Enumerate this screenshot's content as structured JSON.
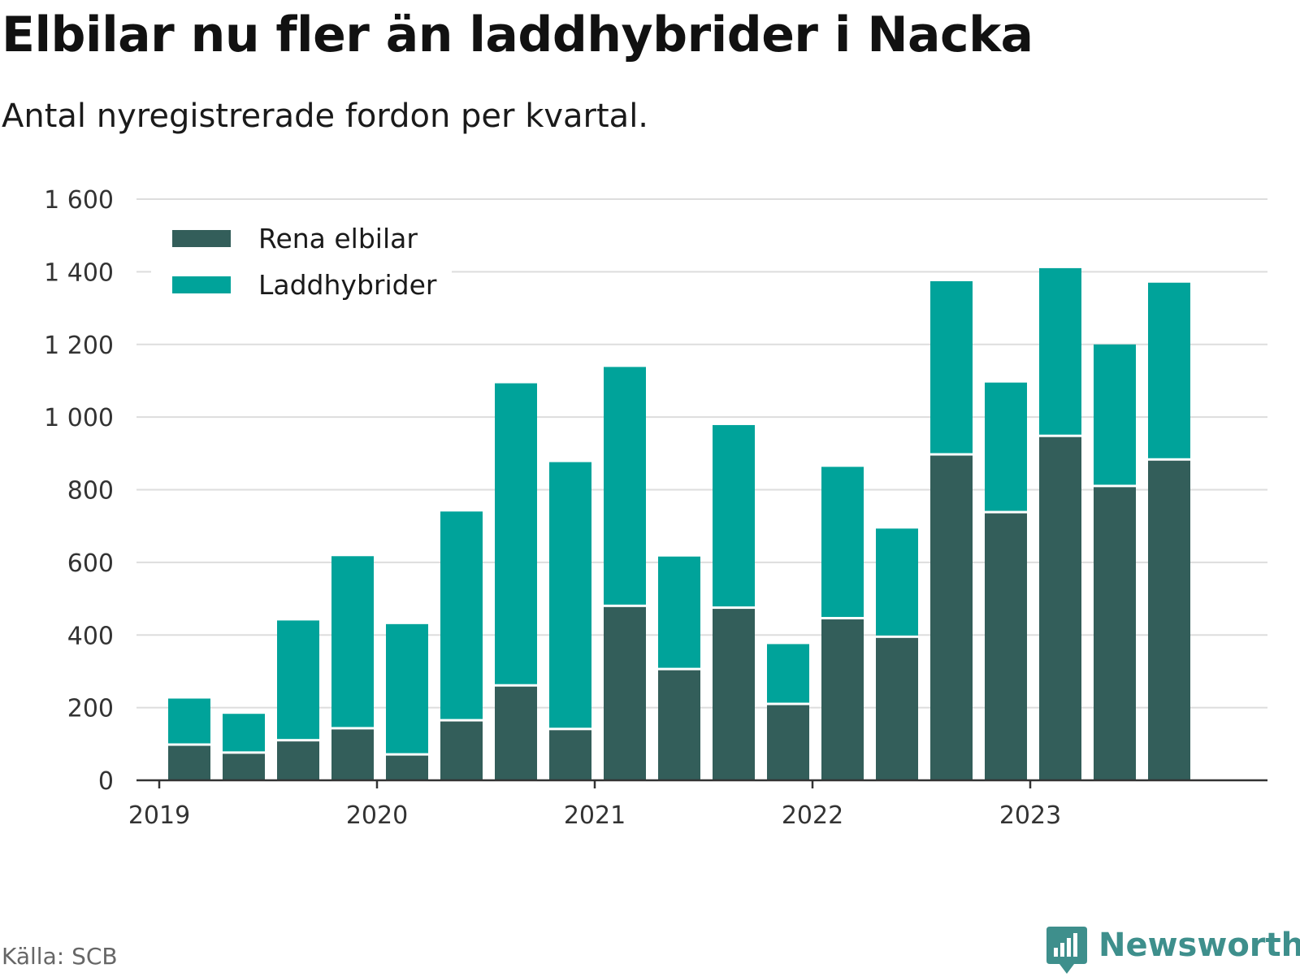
{
  "header": {
    "title": "Elbilar nu fler än laddhybrider i Nacka",
    "subtitle": "Antal nyregistrerade fordon per kvartal."
  },
  "footer": {
    "source": "Källa: SCB",
    "brand": "Newsworthy",
    "brand_icon": "newsworthy-logo-icon"
  },
  "colors": {
    "elbilar": "#335e5a",
    "laddhybrider": "#00a39a",
    "grid": "#dddddd",
    "axis": "#333333",
    "brand": "#3e8f8c"
  },
  "chart_data": {
    "type": "bar",
    "stacked": true,
    "title": "Elbilar nu fler än laddhybrider i Nacka",
    "subtitle": "Antal nyregistrerade fordon per kvartal.",
    "xlabel": "",
    "ylabel": "",
    "ylim": [
      0,
      1600
    ],
    "yticks": [
      0,
      200,
      400,
      600,
      800,
      1000,
      1200,
      1400,
      1600
    ],
    "ytick_labels": [
      "0",
      "200",
      "400",
      "600",
      "800",
      "1 000",
      "1 200",
      "1 400",
      "1 600"
    ],
    "xtick_labels": [
      "2019",
      "2020",
      "2021",
      "2022",
      "2023"
    ],
    "grid": true,
    "legend_position": "top-left",
    "categories": [
      "2019 Q2",
      "2019 Q3",
      "2019 Q4",
      "2020 Q1",
      "2020 Q2",
      "2020 Q3",
      "2020 Q4",
      "2021 Q1",
      "2021 Q2",
      "2021 Q3",
      "2021 Q4",
      "2022 Q1",
      "2022 Q2",
      "2022 Q3",
      "2022 Q4",
      "2023 Q1",
      "2023 Q2",
      "2023 Q3",
      "2023 Q4"
    ],
    "series": [
      {
        "name": "Rena elbilar",
        "values": [
          95,
          73,
          107,
          140,
          68,
          162,
          258,
          138,
          477,
          303,
          472,
          207,
          443,
          392,
          894,
          735,
          945,
          807,
          880
        ]
      },
      {
        "name": "Laddhybrider",
        "values": [
          130,
          110,
          333,
          477,
          362,
          578,
          835,
          738,
          661,
          313,
          506,
          168,
          420,
          301,
          480,
          360,
          465,
          393,
          490
        ]
      }
    ]
  }
}
